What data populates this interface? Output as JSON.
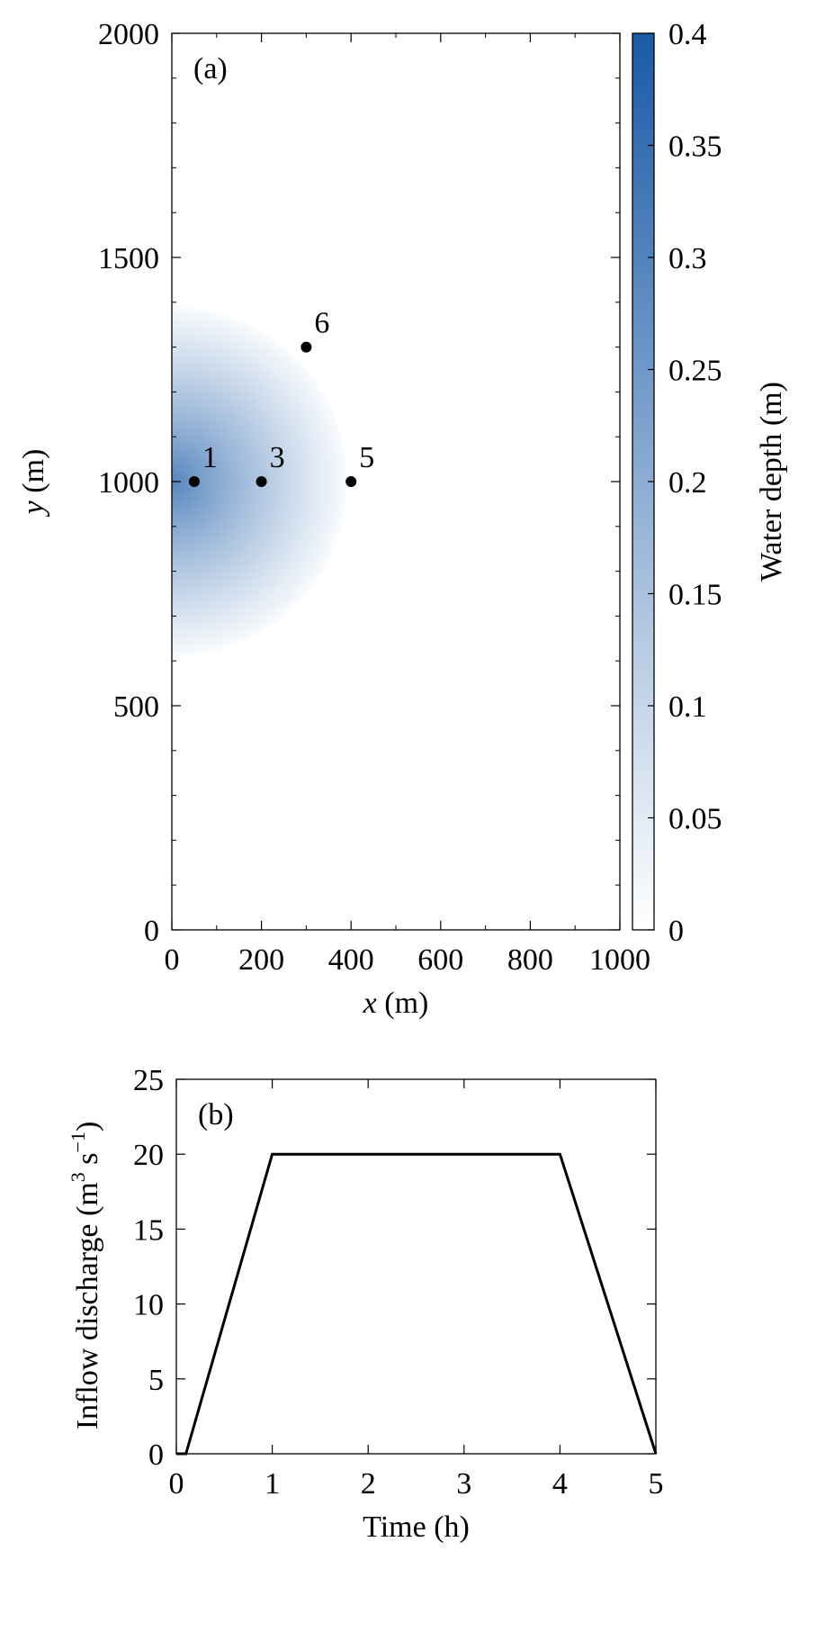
{
  "chart_data": [
    {
      "type": "heatmap",
      "panel_label": "(a)",
      "xlabel": "x (m)",
      "ylabel": "y (m)",
      "xlim": [
        0,
        1000
      ],
      "ylim": [
        0,
        2000
      ],
      "x_ticks": [
        0,
        200,
        400,
        600,
        800,
        1000
      ],
      "y_ticks": [
        0,
        500,
        1000,
        1500,
        2000
      ],
      "x_tick_labels": [
        "0",
        "200",
        "400",
        "600",
        "800",
        "1000"
      ],
      "y_tick_labels": [
        "0",
        "500",
        "1000",
        "1500",
        "2000"
      ],
      "field": {
        "description": "semicircular water-depth field centred on the left boundary",
        "center": [
          0,
          1000
        ],
        "radius": 390,
        "max_depth": 0.3,
        "edge_depth": 0.01
      },
      "points": [
        {
          "label": "1",
          "x": 50,
          "y": 1000
        },
        {
          "label": "3",
          "x": 200,
          "y": 1000
        },
        {
          "label": "5",
          "x": 400,
          "y": 1000
        },
        {
          "label": "6",
          "x": 300,
          "y": 1300
        }
      ],
      "colorbar": {
        "label": "Water depth (m)",
        "range": [
          0,
          0.4
        ],
        "ticks": [
          0,
          0.05,
          0.1,
          0.15,
          0.2,
          0.25,
          0.3,
          0.35,
          0.4
        ],
        "tick_labels": [
          "0",
          "0.05",
          "0.1",
          "0.15",
          "0.2",
          "0.25",
          "0.3",
          "0.35",
          "0.4"
        ],
        "color_low": "#ffffff",
        "color_high": "#1a5aa6"
      }
    },
    {
      "type": "line",
      "panel_label": "(b)",
      "xlabel": "Time (h)",
      "ylabel_main": "Inflow discharge (m",
      "ylabel_sup1": "3",
      "ylabel_mid": " s",
      "ylabel_sup2": "−1",
      "ylabel_end": ")",
      "xlim": [
        0,
        5
      ],
      "ylim": [
        0,
        25
      ],
      "x_ticks": [
        0,
        1,
        2,
        3,
        4,
        5
      ],
      "y_ticks": [
        0,
        5,
        10,
        15,
        20,
        25
      ],
      "x_tick_labels": [
        "0",
        "1",
        "2",
        "3",
        "4",
        "5"
      ],
      "y_tick_labels": [
        "0",
        "5",
        "10",
        "15",
        "20",
        "25"
      ],
      "series": [
        {
          "x": [
            0,
            0.1,
            1,
            4,
            5
          ],
          "y": [
            0,
            0,
            20,
            20,
            0
          ],
          "color": "#000000"
        }
      ]
    }
  ]
}
